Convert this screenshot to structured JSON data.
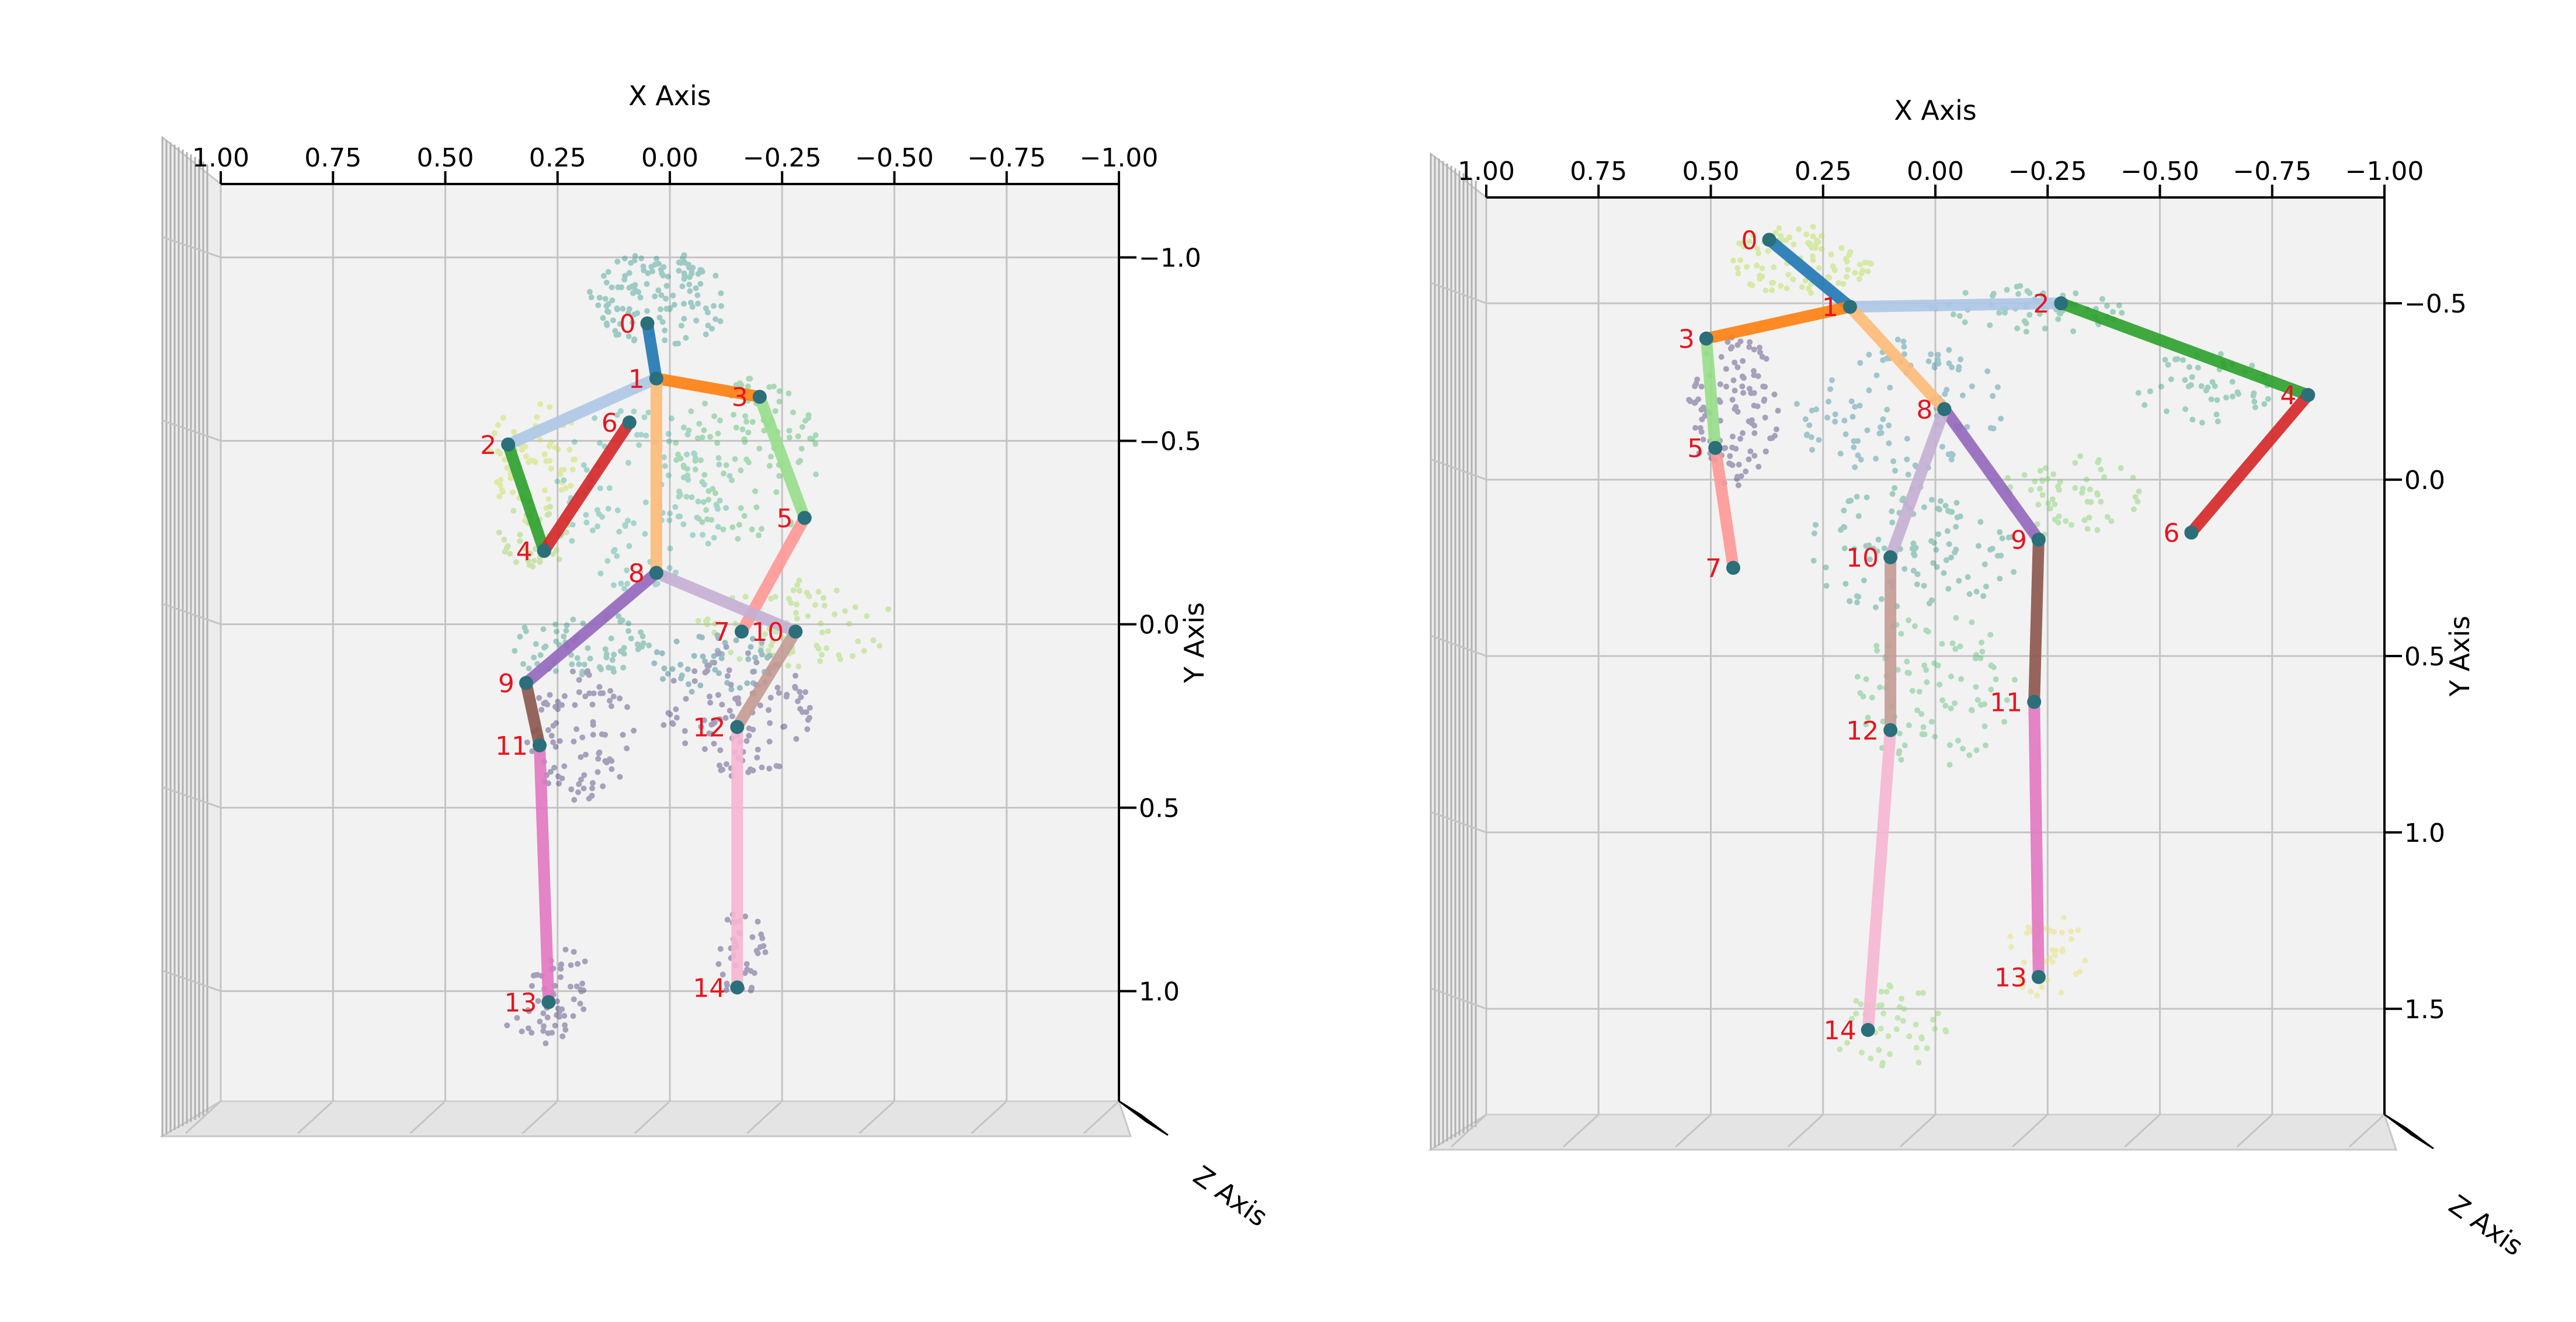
{
  "chart_data": [
    {
      "type": "scatter",
      "subtype": "3d-skeleton-pose",
      "title": "",
      "xlabel": "X Axis",
      "ylabel": "Y Axis",
      "zlabel": "Z Axis",
      "xlim": [
        1.0,
        -1.0
      ],
      "ylim": [
        -1.2,
        1.3
      ],
      "x_ticks": [
        "1.00",
        "0.75",
        "0.50",
        "0.25",
        "0.00",
        "−0.25",
        "−0.50",
        "−0.75",
        "−1.00"
      ],
      "y_ticks": [
        {
          "v": -1.0,
          "label": "−1.0"
        },
        {
          "v": -0.5,
          "label": "−0.5"
        },
        {
          "v": 0.0,
          "label": "0.0"
        },
        {
          "v": 0.5,
          "label": "0.5"
        },
        {
          "v": 1.0,
          "label": "1.0"
        }
      ],
      "grid": true,
      "joints": [
        {
          "id": "0",
          "x": 0.05,
          "y": -0.82
        },
        {
          "id": "1",
          "x": 0.03,
          "y": -0.67
        },
        {
          "id": "2",
          "x": 0.36,
          "y": -0.49
        },
        {
          "id": "3",
          "x": -0.2,
          "y": -0.62
        },
        {
          "id": "4",
          "x": 0.28,
          "y": -0.2
        },
        {
          "id": "5",
          "x": -0.3,
          "y": -0.29
        },
        {
          "id": "6",
          "x": 0.09,
          "y": -0.55
        },
        {
          "id": "7",
          "x": -0.16,
          "y": 0.02
        },
        {
          "id": "8",
          "x": 0.03,
          "y": -0.14
        },
        {
          "id": "9",
          "x": 0.32,
          "y": 0.16
        },
        {
          "id": "10",
          "x": -0.28,
          "y": 0.02
        },
        {
          "id": "11",
          "x": 0.29,
          "y": 0.33
        },
        {
          "id": "12",
          "x": -0.15,
          "y": 0.28
        },
        {
          "id": "13",
          "x": 0.27,
          "y": 1.03
        },
        {
          "id": "14",
          "x": -0.15,
          "y": 0.99
        }
      ],
      "bones": [
        {
          "from": "0",
          "to": "1",
          "color": "#1f77b4"
        },
        {
          "from": "1",
          "to": "2",
          "color": "#aec7e8"
        },
        {
          "from": "1",
          "to": "3",
          "color": "#ff7f0e"
        },
        {
          "from": "1",
          "to": "8",
          "color": "#ffbb78"
        },
        {
          "from": "2",
          "to": "4",
          "color": "#2ca02c"
        },
        {
          "from": "3",
          "to": "5",
          "color": "#98df8a"
        },
        {
          "from": "4",
          "to": "6",
          "color": "#d62728"
        },
        {
          "from": "5",
          "to": "7",
          "color": "#ff9896"
        },
        {
          "from": "8",
          "to": "9",
          "color": "#9467bd"
        },
        {
          "from": "8",
          "to": "10",
          "color": "#c5b0d5"
        },
        {
          "from": "9",
          "to": "11",
          "color": "#8c564b"
        },
        {
          "from": "10",
          "to": "12",
          "color": "#c49c94"
        },
        {
          "from": "11",
          "to": "13",
          "color": "#e377c2"
        },
        {
          "from": "12",
          "to": "14",
          "color": "#f7b6d2"
        }
      ],
      "point_cloud": [
        {
          "x": 0.02,
          "y": -0.89,
          "rx": 0.16,
          "ry": 0.13,
          "n": 130,
          "color": "#3a9a8f"
        },
        {
          "x": 0.3,
          "y": -0.45,
          "rx": 0.1,
          "ry": 0.18,
          "n": 70,
          "color": "#c8e04a"
        },
        {
          "x": 0.3,
          "y": -0.25,
          "rx": 0.08,
          "ry": 0.1,
          "n": 40,
          "color": "#9bd35a"
        },
        {
          "x": -0.17,
          "y": -0.45,
          "rx": 0.17,
          "ry": 0.22,
          "n": 110,
          "color": "#52b96b"
        },
        {
          "x": 0.06,
          "y": -0.35,
          "rx": 0.2,
          "ry": 0.26,
          "n": 110,
          "color": "#48b0a0"
        },
        {
          "x": -0.28,
          "y": 0.0,
          "rx": 0.22,
          "ry": 0.12,
          "n": 80,
          "color": "#a0d85c"
        },
        {
          "x": 0.2,
          "y": 0.05,
          "rx": 0.17,
          "ry": 0.1,
          "n": 70,
          "color": "#3c9b8a"
        },
        {
          "x": -0.1,
          "y": 0.1,
          "rx": 0.14,
          "ry": 0.1,
          "n": 50,
          "color": "#2d7f8c"
        },
        {
          "x": 0.2,
          "y": 0.3,
          "rx": 0.12,
          "ry": 0.18,
          "n": 90,
          "color": "#4b3e7a"
        },
        {
          "x": -0.15,
          "y": 0.24,
          "rx": 0.17,
          "ry": 0.18,
          "n": 110,
          "color": "#4b3e7a"
        },
        {
          "x": 0.24,
          "y": 0.98,
          "rx": 0.07,
          "ry": 0.1,
          "n": 40,
          "color": "#4b3e7a"
        },
        {
          "x": 0.3,
          "y": 1.1,
          "rx": 0.07,
          "ry": 0.05,
          "n": 20,
          "color": "#4b3e7a"
        },
        {
          "x": -0.16,
          "y": 0.9,
          "rx": 0.06,
          "ry": 0.12,
          "n": 40,
          "color": "#4b3e7a"
        }
      ]
    },
    {
      "type": "scatter",
      "subtype": "3d-skeleton-pose",
      "title": "",
      "xlabel": "X Axis",
      "ylabel": "Y Axis",
      "zlabel": "Z Axis",
      "xlim": [
        1.0,
        -1.0
      ],
      "ylim": [
        -0.8,
        1.8
      ],
      "x_ticks": [
        "1.00",
        "0.75",
        "0.50",
        "0.25",
        "0.00",
        "−0.25",
        "−0.50",
        "−0.75",
        "−1.00"
      ],
      "y_ticks": [
        {
          "v": -0.5,
          "label": "−0.5"
        },
        {
          "v": 0.0,
          "label": "0.0"
        },
        {
          "v": 0.5,
          "label": "0.5"
        },
        {
          "v": 1.0,
          "label": "1.0"
        },
        {
          "v": 1.5,
          "label": "1.5"
        }
      ],
      "grid": true,
      "joints": [
        {
          "id": "0",
          "x": 0.37,
          "y": -0.68
        },
        {
          "id": "1",
          "x": 0.19,
          "y": -0.49
        },
        {
          "id": "2",
          "x": -0.28,
          "y": -0.5
        },
        {
          "id": "3",
          "x": 0.51,
          "y": -0.4
        },
        {
          "id": "4",
          "x": -0.83,
          "y": -0.24
        },
        {
          "id": "5",
          "x": 0.49,
          "y": -0.09
        },
        {
          "id": "6",
          "x": -0.57,
          "y": 0.15
        },
        {
          "id": "7",
          "x": 0.45,
          "y": 0.25
        },
        {
          "id": "8",
          "x": -0.02,
          "y": -0.2
        },
        {
          "id": "9",
          "x": -0.23,
          "y": 0.17
        },
        {
          "id": "10",
          "x": 0.1,
          "y": 0.22
        },
        {
          "id": "11",
          "x": -0.22,
          "y": 0.63
        },
        {
          "id": "12",
          "x": 0.1,
          "y": 0.71
        },
        {
          "id": "13",
          "x": -0.23,
          "y": 1.41
        },
        {
          "id": "14",
          "x": 0.15,
          "y": 1.56
        }
      ],
      "bones": [
        {
          "from": "0",
          "to": "1",
          "color": "#1f77b4"
        },
        {
          "from": "1",
          "to": "2",
          "color": "#aec7e8"
        },
        {
          "from": "1",
          "to": "3",
          "color": "#ff7f0e"
        },
        {
          "from": "1",
          "to": "8",
          "color": "#ffbb78"
        },
        {
          "from": "2",
          "to": "4",
          "color": "#2ca02c"
        },
        {
          "from": "3",
          "to": "5",
          "color": "#98df8a"
        },
        {
          "from": "4",
          "to": "6",
          "color": "#d62728"
        },
        {
          "from": "5",
          "to": "7",
          "color": "#ff9896"
        },
        {
          "from": "8",
          "to": "9",
          "color": "#9467bd"
        },
        {
          "from": "8",
          "to": "10",
          "color": "#c5b0d5"
        },
        {
          "from": "9",
          "to": "11",
          "color": "#8c564b"
        },
        {
          "from": "10",
          "to": "12",
          "color": "#c49c94"
        },
        {
          "from": "11",
          "to": "13",
          "color": "#e377c2"
        },
        {
          "from": "12",
          "to": "14",
          "color": "#f7b6d2"
        }
      ],
      "point_cloud": [
        {
          "x": 0.3,
          "y": -0.62,
          "rx": 0.16,
          "ry": 0.1,
          "n": 90,
          "color": "#b5df4a"
        },
        {
          "x": -0.2,
          "y": -0.48,
          "rx": 0.22,
          "ry": 0.07,
          "n": 60,
          "color": "#3fa67d"
        },
        {
          "x": -0.6,
          "y": -0.26,
          "rx": 0.16,
          "ry": 0.1,
          "n": 50,
          "color": "#3fa67d"
        },
        {
          "x": 0.45,
          "y": -0.2,
          "rx": 0.1,
          "ry": 0.22,
          "n": 110,
          "color": "#4b3e7a"
        },
        {
          "x": 0.08,
          "y": -0.2,
          "rx": 0.24,
          "ry": 0.2,
          "n": 100,
          "color": "#3e8fa0"
        },
        {
          "x": -0.3,
          "y": 0.05,
          "rx": 0.16,
          "ry": 0.12,
          "n": 60,
          "color": "#7fcf6a"
        },
        {
          "x": 0.05,
          "y": 0.2,
          "rx": 0.24,
          "ry": 0.18,
          "n": 110,
          "color": "#3c9b8a"
        },
        {
          "x": 0.0,
          "y": 0.6,
          "rx": 0.18,
          "ry": 0.22,
          "n": 90,
          "color": "#5bbf77"
        },
        {
          "x": -0.25,
          "y": 1.35,
          "rx": 0.1,
          "ry": 0.12,
          "n": 40,
          "color": "#e6e06a"
        },
        {
          "x": 0.1,
          "y": 1.55,
          "rx": 0.14,
          "ry": 0.12,
          "n": 45,
          "color": "#8ed66a"
        }
      ]
    }
  ]
}
